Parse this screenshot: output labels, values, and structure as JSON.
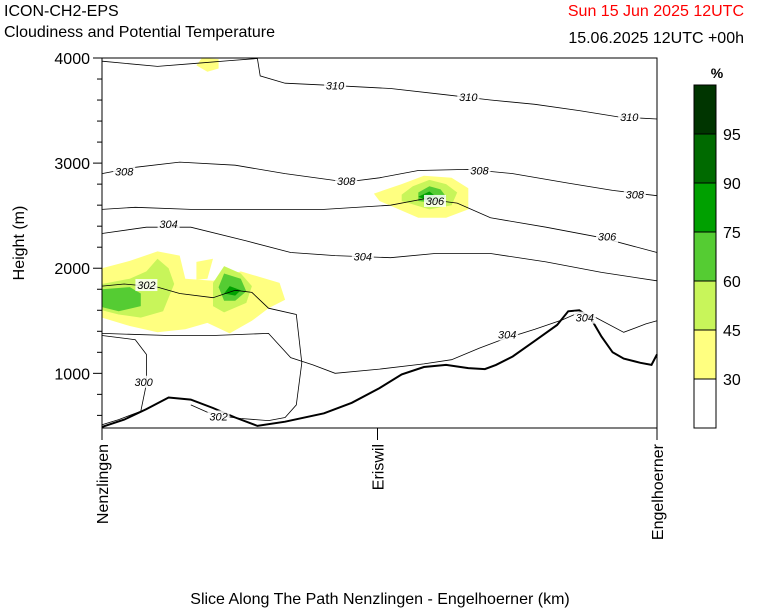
{
  "header": {
    "model": "ICON-CH2-EPS",
    "subtitle": "Cloudiness and Potential Temperature",
    "valid_time": "Sun 15 Jun 2025 12UTC",
    "run_time": "15.06.2025 12UTC +00h"
  },
  "colors": {
    "valid_time": "#ff0000",
    "contour": "#000000",
    "terrain": "#000000"
  },
  "chart_data": {
    "type": "cross-section",
    "ylabel": "Height (m)",
    "xlabel": "Slice Along The Path Nenzlingen - Engelhoerner (km)",
    "ylim": [
      480,
      4000
    ],
    "y_ticks": [
      1000,
      2000,
      3000,
      4000
    ],
    "x_locations": [
      "Nenzlingen",
      "Eriswil",
      "Engelhoerner"
    ],
    "grid": false,
    "colorbar": {
      "unit": "%",
      "levels": [
        30,
        45,
        60,
        75,
        90,
        95
      ],
      "colors": [
        "#ffffff",
        "#ffff80",
        "#c8f55a",
        "#55cc33",
        "#00a000",
        "#006a00",
        "#003500"
      ]
    },
    "isentrope_labels": [
      {
        "value": "310",
        "x": 0.42,
        "y": 3740
      },
      {
        "value": "310",
        "x": 0.66,
        "y": 3630
      },
      {
        "value": "310",
        "x": 0.95,
        "y": 3440
      },
      {
        "value": "308",
        "x": 0.04,
        "y": 2920
      },
      {
        "value": "308",
        "x": 0.44,
        "y": 2830
      },
      {
        "value": "308",
        "x": 0.68,
        "y": 2930
      },
      {
        "value": "308",
        "x": 0.96,
        "y": 2700
      },
      {
        "value": "306",
        "x": 0.6,
        "y": 2640
      },
      {
        "value": "306",
        "x": 0.91,
        "y": 2300
      },
      {
        "value": "304",
        "x": 0.12,
        "y": 2420
      },
      {
        "value": "304",
        "x": 0.47,
        "y": 2110
      },
      {
        "value": "304",
        "x": 0.73,
        "y": 1370
      },
      {
        "value": "304",
        "x": 0.87,
        "y": 1530
      },
      {
        "value": "302",
        "x": 0.08,
        "y": 1840
      },
      {
        "value": "302",
        "x": 0.21,
        "y": 590
      },
      {
        "value": "300",
        "x": 0.075,
        "y": 920
      }
    ],
    "isentropes": [
      [
        [
          0,
          3970
        ],
        [
          0.1,
          3920
        ],
        [
          0.17,
          3950
        ],
        [
          0.23,
          3975
        ],
        [
          0.28,
          3995
        ],
        [
          0.285,
          3830
        ],
        [
          0.33,
          3760
        ],
        [
          0.41,
          3740
        ],
        [
          0.52,
          3710
        ],
        [
          0.62,
          3650
        ],
        [
          0.7,
          3600
        ],
        [
          0.78,
          3560
        ],
        [
          0.86,
          3500
        ],
        [
          0.93,
          3440
        ],
        [
          1,
          3420
        ]
      ],
      [
        [
          0,
          2900
        ],
        [
          0.06,
          2960
        ],
        [
          0.14,
          3010
        ],
        [
          0.24,
          2980
        ],
        [
          0.33,
          2900
        ],
        [
          0.44,
          2820
        ],
        [
          0.5,
          2860
        ],
        [
          0.57,
          2930
        ],
        [
          0.66,
          2940
        ],
        [
          0.74,
          2900
        ],
        [
          0.84,
          2810
        ],
        [
          0.92,
          2740
        ],
        [
          1,
          2690
        ]
      ],
      [
        [
          0,
          2560
        ],
        [
          0.06,
          2580
        ],
        [
          0.16,
          2560
        ],
        [
          0.28,
          2560
        ],
        [
          0.4,
          2560
        ],
        [
          0.52,
          2600
        ],
        [
          0.58,
          2660
        ],
        [
          0.64,
          2620
        ],
        [
          0.7,
          2480
        ],
        [
          0.8,
          2390
        ],
        [
          0.9,
          2290
        ],
        [
          1,
          2150
        ]
      ],
      [
        [
          0,
          2330
        ],
        [
          0.08,
          2390
        ],
        [
          0.16,
          2390
        ],
        [
          0.26,
          2260
        ],
        [
          0.34,
          2150
        ],
        [
          0.42,
          2120
        ],
        [
          0.52,
          2100
        ],
        [
          0.6,
          2140
        ],
        [
          0.7,
          2140
        ],
        [
          0.8,
          2060
        ],
        [
          0.9,
          1960
        ],
        [
          1,
          1880
        ]
      ],
      [
        [
          0,
          1380
        ],
        [
          0.12,
          1360
        ],
        [
          0.2,
          1360
        ],
        [
          0.3,
          1380
        ],
        [
          0.34,
          1150
        ],
        [
          0.38,
          1080
        ],
        [
          0.42,
          1000
        ],
        [
          0.5,
          1040
        ],
        [
          0.58,
          1090
        ],
        [
          0.63,
          1130
        ],
        [
          0.68,
          1240
        ],
        [
          0.72,
          1320
        ],
        [
          0.78,
          1420
        ],
        [
          0.83,
          1510
        ],
        [
          0.86,
          1580
        ],
        [
          0.89,
          1530
        ],
        [
          0.94,
          1390
        ],
        [
          0.98,
          1470
        ],
        [
          1,
          1500
        ]
      ],
      [
        [
          0,
          1830
        ],
        [
          0.04,
          1850
        ],
        [
          0.1,
          1820
        ],
        [
          0.14,
          1760
        ],
        [
          0.2,
          1720
        ],
        [
          0.24,
          1790
        ],
        [
          0.27,
          1770
        ],
        [
          0.3,
          1620
        ],
        [
          0.35,
          1560
        ],
        [
          0.36,
          1100
        ],
        [
          0.35,
          700
        ],
        [
          0.33,
          580
        ],
        [
          0.3,
          550
        ],
        [
          0.25,
          570
        ],
        [
          0.22,
          590
        ],
        [
          0.19,
          630
        ],
        [
          0.16,
          700
        ]
      ]
    ],
    "isentrope_300": [
      [
        0,
        1360
      ],
      [
        0.06,
        1320
      ],
      [
        0.08,
        1180
      ],
      [
        0.08,
        900
      ],
      [
        0.07,
        640
      ],
      [
        0.03,
        560
      ],
      [
        0,
        510
      ]
    ],
    "terrain": [
      [
        0,
        490
      ],
      [
        0.04,
        560
      ],
      [
        0.08,
        660
      ],
      [
        0.12,
        770
      ],
      [
        0.16,
        750
      ],
      [
        0.2,
        670
      ],
      [
        0.24,
        580
      ],
      [
        0.28,
        500
      ],
      [
        0.33,
        540
      ],
      [
        0.4,
        620
      ],
      [
        0.45,
        720
      ],
      [
        0.5,
        860
      ],
      [
        0.54,
        990
      ],
      [
        0.58,
        1060
      ],
      [
        0.62,
        1080
      ],
      [
        0.66,
        1050
      ],
      [
        0.69,
        1040
      ],
      [
        0.71,
        1080
      ],
      [
        0.74,
        1160
      ],
      [
        0.78,
        1310
      ],
      [
        0.82,
        1460
      ],
      [
        0.84,
        1590
      ],
      [
        0.86,
        1600
      ],
      [
        0.88,
        1530
      ],
      [
        0.9,
        1350
      ],
      [
        0.92,
        1200
      ],
      [
        0.94,
        1140
      ],
      [
        0.97,
        1100
      ],
      [
        0.99,
        1080
      ],
      [
        1,
        1180
      ]
    ],
    "clouds": [
      {
        "level": 30,
        "polygon": [
          [
            0.0,
            2000
          ],
          [
            0.05,
            2070
          ],
          [
            0.1,
            2160
          ],
          [
            0.14,
            2120
          ],
          [
            0.15,
            1900
          ],
          [
            0.2,
            1880
          ],
          [
            0.25,
            1970
          ],
          [
            0.32,
            1860
          ],
          [
            0.33,
            1700
          ],
          [
            0.3,
            1620
          ],
          [
            0.27,
            1500
          ],
          [
            0.23,
            1380
          ],
          [
            0.19,
            1480
          ],
          [
            0.15,
            1420
          ],
          [
            0.1,
            1390
          ],
          [
            0.05,
            1450
          ],
          [
            0.0,
            1530
          ]
        ]
      },
      {
        "level": 30,
        "polygon": [
          [
            0.17,
            2060
          ],
          [
            0.2,
            2090
          ],
          [
            0.19,
            1900
          ],
          [
            0.17,
            1890
          ]
        ]
      },
      {
        "level": 45,
        "polygon": [
          [
            0.0,
            1850
          ],
          [
            0.05,
            1900
          ],
          [
            0.08,
            1970
          ],
          [
            0.1,
            2090
          ],
          [
            0.12,
            2000
          ],
          [
            0.13,
            1850
          ],
          [
            0.11,
            1590
          ],
          [
            0.07,
            1530
          ],
          [
            0.03,
            1560
          ],
          [
            0.0,
            1600
          ]
        ]
      },
      {
        "level": 45,
        "polygon": [
          [
            0.22,
            2020
          ],
          [
            0.25,
            1950
          ],
          [
            0.27,
            1830
          ],
          [
            0.26,
            1670
          ],
          [
            0.22,
            1580
          ],
          [
            0.2,
            1640
          ],
          [
            0.2,
            1860
          ]
        ]
      },
      {
        "level": 60,
        "polygon": [
          [
            0.0,
            1800
          ],
          [
            0.05,
            1820
          ],
          [
            0.07,
            1760
          ],
          [
            0.07,
            1640
          ],
          [
            0.03,
            1590
          ],
          [
            0.0,
            1630
          ]
        ]
      },
      {
        "level": 60,
        "polygon": [
          [
            0.22,
            1950
          ],
          [
            0.25,
            1900
          ],
          [
            0.26,
            1780
          ],
          [
            0.24,
            1690
          ],
          [
            0.22,
            1690
          ],
          [
            0.21,
            1820
          ]
        ]
      },
      {
        "level": 75,
        "polygon": [
          [
            0.23,
            1830
          ],
          [
            0.25,
            1790
          ],
          [
            0.24,
            1740
          ],
          [
            0.22,
            1760
          ]
        ]
      },
      {
        "level": 30,
        "polygon": [
          [
            0.18,
            4000
          ],
          [
            0.21,
            3990
          ],
          [
            0.21,
            3900
          ],
          [
            0.19,
            3870
          ],
          [
            0.17,
            3930
          ]
        ]
      },
      {
        "level": 30,
        "polygon": [
          [
            0.54,
            2800
          ],
          [
            0.58,
            2880
          ],
          [
            0.63,
            2860
          ],
          [
            0.66,
            2760
          ],
          [
            0.66,
            2560
          ],
          [
            0.62,
            2480
          ],
          [
            0.57,
            2480
          ],
          [
            0.5,
            2640
          ],
          [
            0.49,
            2710
          ]
        ]
      },
      {
        "level": 45,
        "polygon": [
          [
            0.56,
            2780
          ],
          [
            0.59,
            2840
          ],
          [
            0.62,
            2800
          ],
          [
            0.64,
            2720
          ],
          [
            0.63,
            2600
          ],
          [
            0.59,
            2560
          ],
          [
            0.54,
            2640
          ],
          [
            0.54,
            2700
          ]
        ]
      },
      {
        "level": 60,
        "polygon": [
          [
            0.57,
            2720
          ],
          [
            0.59,
            2780
          ],
          [
            0.61,
            2750
          ],
          [
            0.62,
            2680
          ],
          [
            0.6,
            2620
          ],
          [
            0.57,
            2640
          ]
        ]
      },
      {
        "level": 75,
        "polygon": [
          [
            0.57,
            2680
          ],
          [
            0.59,
            2730
          ],
          [
            0.6,
            2690
          ],
          [
            0.59,
            2640
          ]
        ]
      }
    ]
  }
}
